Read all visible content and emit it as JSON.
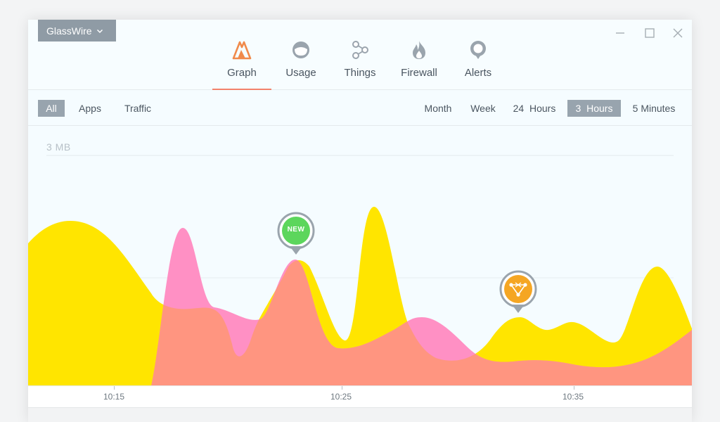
{
  "app": {
    "name": "GlassWire"
  },
  "nav": {
    "tabs": [
      {
        "label": "Graph",
        "icon": "graph-icon",
        "active": true
      },
      {
        "label": "Usage",
        "icon": "usage-icon",
        "active": false
      },
      {
        "label": "Things",
        "icon": "things-icon",
        "active": false
      },
      {
        "label": "Firewall",
        "icon": "firewall-icon",
        "active": false
      },
      {
        "label": "Alerts",
        "icon": "alerts-icon",
        "active": false
      }
    ]
  },
  "filters": {
    "view": [
      {
        "label": "All",
        "active": true
      },
      {
        "label": "Apps",
        "active": false
      },
      {
        "label": "Traffic",
        "active": false
      }
    ],
    "range": [
      {
        "label": "Month",
        "active": false
      },
      {
        "label": "Week",
        "active": false
      },
      {
        "label": "24  Hours",
        "active": false
      },
      {
        "label": "3  Hours",
        "active": true
      },
      {
        "label": "5 Minutes",
        "active": false
      }
    ]
  },
  "graph": {
    "y_label": "3 MB",
    "time_ticks": [
      "10:15",
      "10:25",
      "10:35"
    ],
    "markers": [
      {
        "type": "new-app",
        "label": "NEW",
        "color": "#5cd65c"
      },
      {
        "type": "network-device",
        "label": "",
        "color": "#f5a623"
      }
    ]
  },
  "colors": {
    "accent": "#f3826b",
    "incoming": "#ffe500",
    "outgoing": "#ff90c4",
    "overlap": "#ff9580",
    "menu_bg": "#8f9ba5"
  }
}
